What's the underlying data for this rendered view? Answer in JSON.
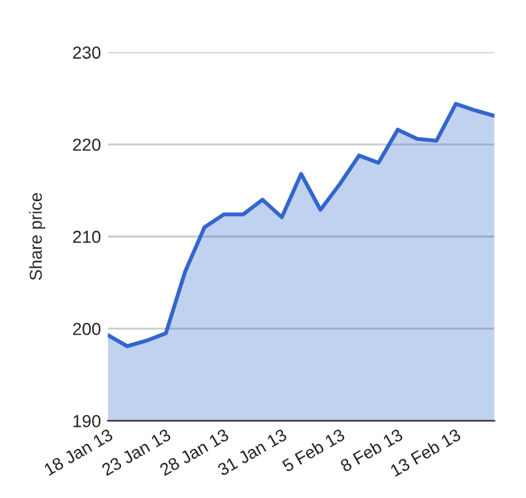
{
  "chart_data": {
    "type": "area",
    "ylabel": "Share price",
    "categories": [
      "18 Jan 13",
      null,
      null,
      "23 Jan 13",
      null,
      null,
      "28 Jan 13",
      null,
      null,
      "31 Jan 13",
      null,
      null,
      "5 Feb 13",
      null,
      null,
      "8 Feb 13",
      null,
      null,
      "13 Feb 13",
      null,
      null
    ],
    "series": [
      {
        "color": "#3366cc",
        "values": [
          199.3,
          198.1,
          198.7,
          199.5,
          206.2,
          211.0,
          212.4,
          212.4,
          214.0,
          212.1,
          216.8,
          212.9,
          215.7,
          218.8,
          218.0,
          221.6,
          220.6,
          220.4,
          224.4,
          223.7,
          223.1
        ]
      }
    ],
    "ylim": [
      190,
      230
    ],
    "yticks": [
      190,
      200,
      210,
      220,
      230
    ],
    "grid": "y",
    "legend": false
  }
}
